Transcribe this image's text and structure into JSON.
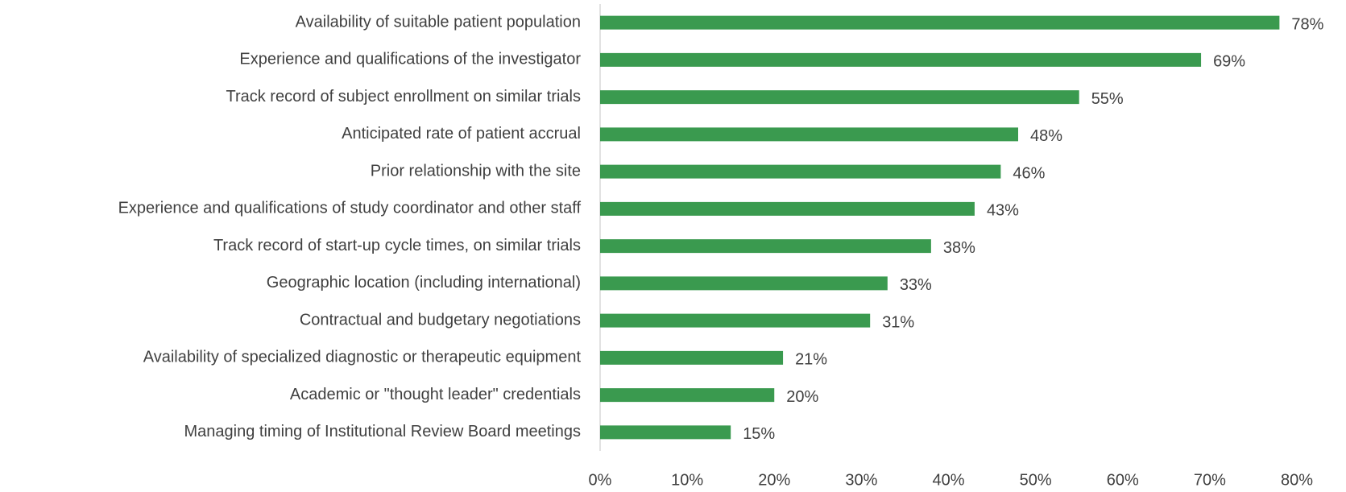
{
  "chart_data": {
    "type": "barh",
    "categories": [
      "Availability of suitable patient population",
      "Experience and qualifications of the investigator",
      "Track record of subject enrollment on similar trials",
      "Anticipated rate of patient accrual",
      "Prior relationship with the site",
      "Experience and qualifications of study coordinator and other staff",
      "Track record of start-up cycle times, on similar trials",
      "Geographic location (including international)",
      "Contractual and budgetary negotiations",
      "Availability of specialized diagnostic or therapeutic equipment",
      "Academic or \"thought leader\" credentials",
      "Managing timing of Institutional Review Board meetings"
    ],
    "values": [
      78,
      69,
      55,
      48,
      46,
      43,
      38,
      33,
      31,
      21,
      20,
      15
    ],
    "value_labels": [
      "78%",
      "69%",
      "55%",
      "48%",
      "46%",
      "43%",
      "38%",
      "33%",
      "31%",
      "21%",
      "20%",
      "15%"
    ],
    "color": "#3a9a4f",
    "xlim": [
      0,
      80
    ],
    "xticks": [
      {
        "value": 0,
        "label": "0%"
      },
      {
        "value": 10,
        "label": "10%"
      },
      {
        "value": 20,
        "label": "20%"
      },
      {
        "value": 30,
        "label": "30%"
      },
      {
        "value": 40,
        "label": "40%"
      },
      {
        "value": 50,
        "label": "50%"
      },
      {
        "value": 60,
        "label": "60%"
      },
      {
        "value": 70,
        "label": "70%"
      },
      {
        "value": 80,
        "label": "80%"
      }
    ],
    "grid": false
  }
}
